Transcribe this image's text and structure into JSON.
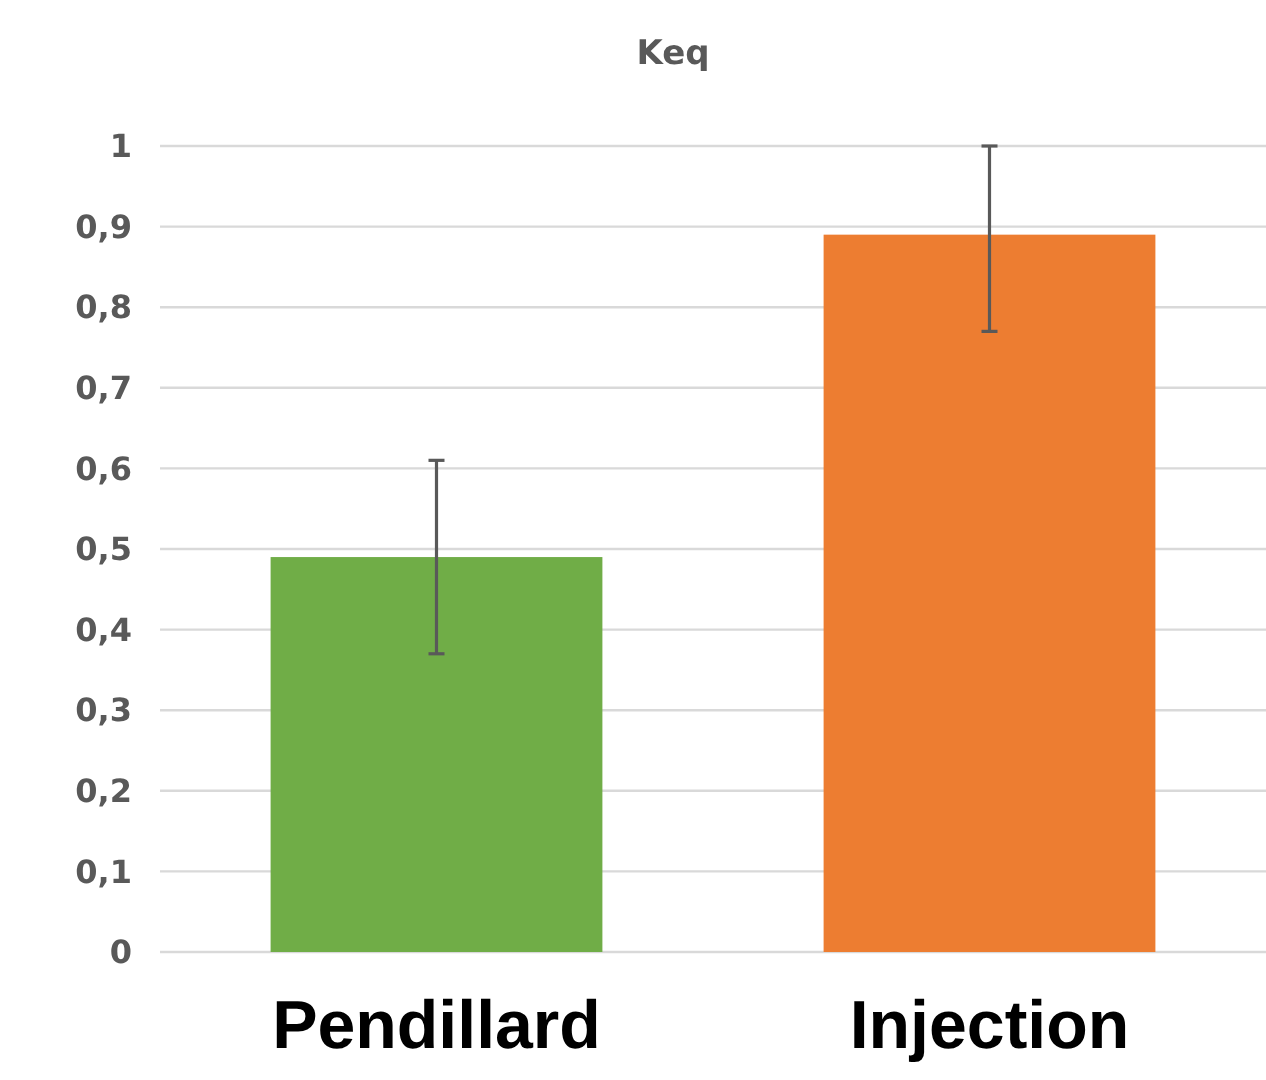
{
  "chart_data": {
    "type": "bar",
    "title": "Keq",
    "categories": [
      "Pendillard",
      "Injection"
    ],
    "values": [
      0.49,
      0.89
    ],
    "colors": [
      "#70ad47",
      "#ed7d31"
    ],
    "errors": [
      0.12,
      [
        0.77,
        1
      ]
    ],
    "ylim": [
      0,
      1
    ],
    "yticks": [
      0,
      {
        "value": 0.1,
        "label": "0,1"
      },
      {
        "value": 0.2,
        "label": "0,2"
      },
      {
        "value": 0.3,
        "label": "0,3"
      },
      {
        "value": 0.4,
        "label": "0,4"
      },
      {
        "value": 0.5,
        "label": "0,5"
      },
      {
        "value": 0.6,
        "label": "0,6"
      },
      {
        "value": 0.7,
        "label": "0,7"
      },
      {
        "value": 0.8,
        "label": "0,8"
      },
      {
        "value": 0.9,
        "label": "0,9"
      },
      1
    ],
    "grid": "y"
  }
}
